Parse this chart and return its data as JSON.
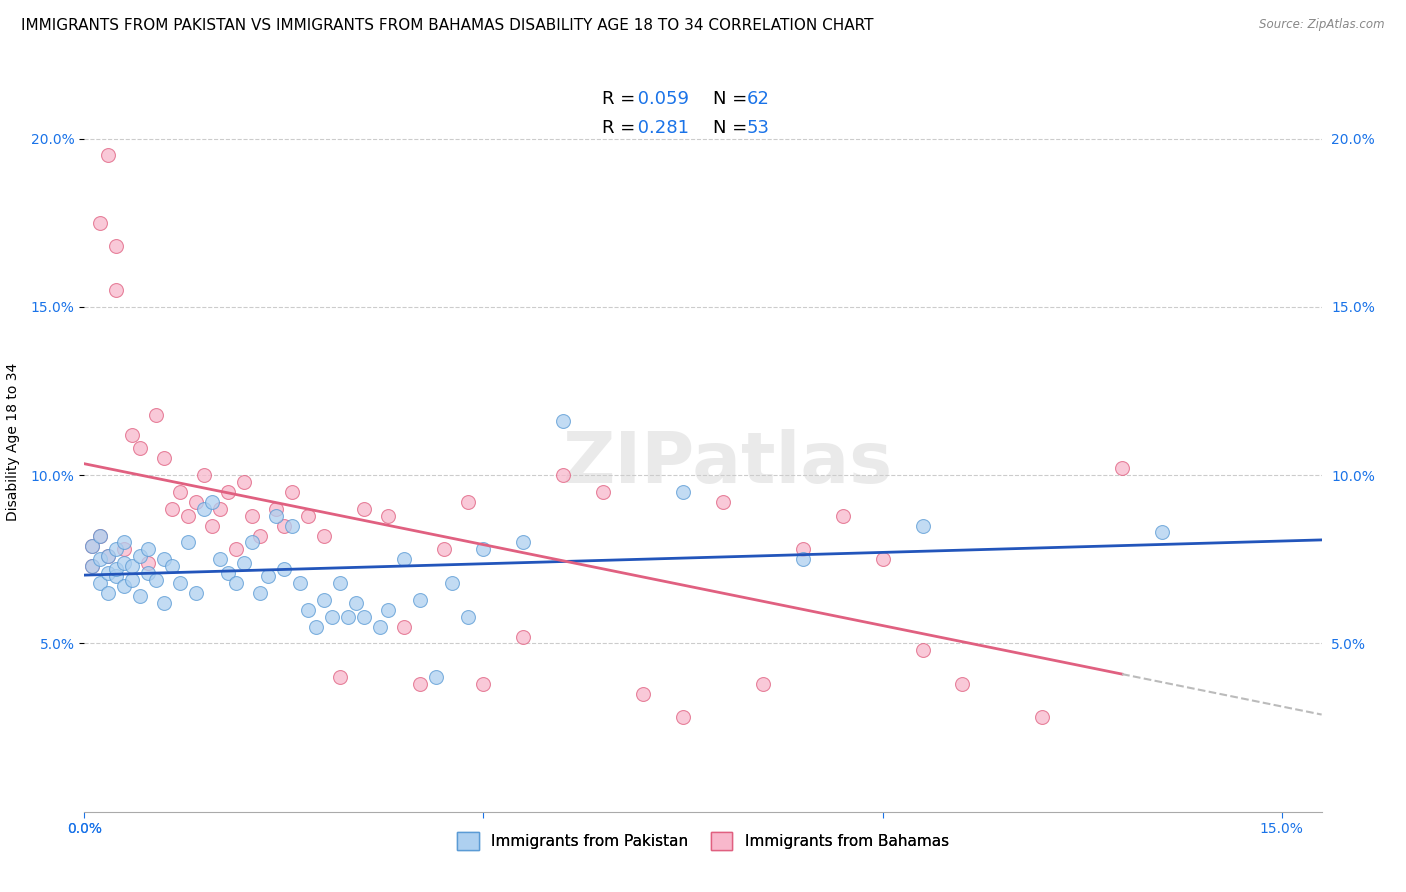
{
  "title": "IMMIGRANTS FROM PAKISTAN VS IMMIGRANTS FROM BAHAMAS DISABILITY AGE 18 TO 34 CORRELATION CHART",
  "source": "Source: ZipAtlas.com",
  "ylabel": "Disability Age 18 to 34",
  "xlim": [
    0.0,
    0.155
  ],
  "ylim": [
    0.0,
    0.22
  ],
  "xticks": [
    0.0,
    0.05,
    0.1,
    0.15
  ],
  "xticklabels": [
    "0.0%",
    "",
    "",
    "15.0%"
  ],
  "yticks": [
    0.05,
    0.1,
    0.15,
    0.2
  ],
  "yticklabels": [
    "5.0%",
    "10.0%",
    "15.0%",
    "20.0%"
  ],
  "series": [
    {
      "label": "Immigrants from Pakistan",
      "color": "#aed0f0",
      "edge_color": "#5b9bd5",
      "R": 0.059,
      "N": 62,
      "line_color": "#2255bb"
    },
    {
      "label": "Immigrants from Bahamas",
      "color": "#f8b8cc",
      "edge_color": "#e06080",
      "R": 0.281,
      "N": 53,
      "line_color": "#e06080"
    }
  ],
  "legend_color": "#1a73e8",
  "watermark": "ZIPatlas",
  "grid_color": "#cccccc",
  "background_color": "#ffffff",
  "title_fontsize": 11,
  "axis_fontsize": 10,
  "tick_fontsize": 10,
  "pakistan_x": [
    0.001,
    0.001,
    0.002,
    0.002,
    0.002,
    0.003,
    0.003,
    0.003,
    0.004,
    0.004,
    0.004,
    0.005,
    0.005,
    0.005,
    0.006,
    0.006,
    0.007,
    0.007,
    0.008,
    0.008,
    0.009,
    0.01,
    0.01,
    0.011,
    0.012,
    0.013,
    0.014,
    0.015,
    0.016,
    0.017,
    0.018,
    0.019,
    0.02,
    0.021,
    0.022,
    0.023,
    0.024,
    0.025,
    0.026,
    0.027,
    0.028,
    0.029,
    0.03,
    0.031,
    0.032,
    0.033,
    0.034,
    0.035,
    0.037,
    0.038,
    0.04,
    0.042,
    0.044,
    0.046,
    0.048,
    0.05,
    0.055,
    0.06,
    0.075,
    0.09,
    0.105,
    0.135
  ],
  "pakistan_y": [
    0.079,
    0.073,
    0.075,
    0.068,
    0.082,
    0.071,
    0.076,
    0.065,
    0.078,
    0.07,
    0.072,
    0.074,
    0.067,
    0.08,
    0.073,
    0.069,
    0.076,
    0.064,
    0.078,
    0.071,
    0.069,
    0.075,
    0.062,
    0.073,
    0.068,
    0.08,
    0.065,
    0.09,
    0.092,
    0.075,
    0.071,
    0.068,
    0.074,
    0.08,
    0.065,
    0.07,
    0.088,
    0.072,
    0.085,
    0.068,
    0.06,
    0.055,
    0.063,
    0.058,
    0.068,
    0.058,
    0.062,
    0.058,
    0.055,
    0.06,
    0.075,
    0.063,
    0.04,
    0.068,
    0.058,
    0.078,
    0.08,
    0.116,
    0.095,
    0.075,
    0.085,
    0.083
  ],
  "bahamas_x": [
    0.001,
    0.001,
    0.002,
    0.002,
    0.003,
    0.003,
    0.004,
    0.004,
    0.005,
    0.006,
    0.007,
    0.008,
    0.009,
    0.01,
    0.011,
    0.012,
    0.013,
    0.014,
    0.015,
    0.016,
    0.017,
    0.018,
    0.019,
    0.02,
    0.021,
    0.022,
    0.024,
    0.025,
    0.026,
    0.028,
    0.03,
    0.032,
    0.035,
    0.038,
    0.04,
    0.042,
    0.045,
    0.048,
    0.05,
    0.055,
    0.06,
    0.065,
    0.07,
    0.075,
    0.08,
    0.085,
    0.09,
    0.095,
    0.1,
    0.105,
    0.11,
    0.12,
    0.13
  ],
  "bahamas_y": [
    0.079,
    0.073,
    0.175,
    0.082,
    0.195,
    0.076,
    0.168,
    0.155,
    0.078,
    0.112,
    0.108,
    0.074,
    0.118,
    0.105,
    0.09,
    0.095,
    0.088,
    0.092,
    0.1,
    0.085,
    0.09,
    0.095,
    0.078,
    0.098,
    0.088,
    0.082,
    0.09,
    0.085,
    0.095,
    0.088,
    0.082,
    0.04,
    0.09,
    0.088,
    0.055,
    0.038,
    0.078,
    0.092,
    0.038,
    0.052,
    0.1,
    0.095,
    0.035,
    0.028,
    0.092,
    0.038,
    0.078,
    0.088,
    0.075,
    0.048,
    0.038,
    0.028,
    0.102
  ]
}
